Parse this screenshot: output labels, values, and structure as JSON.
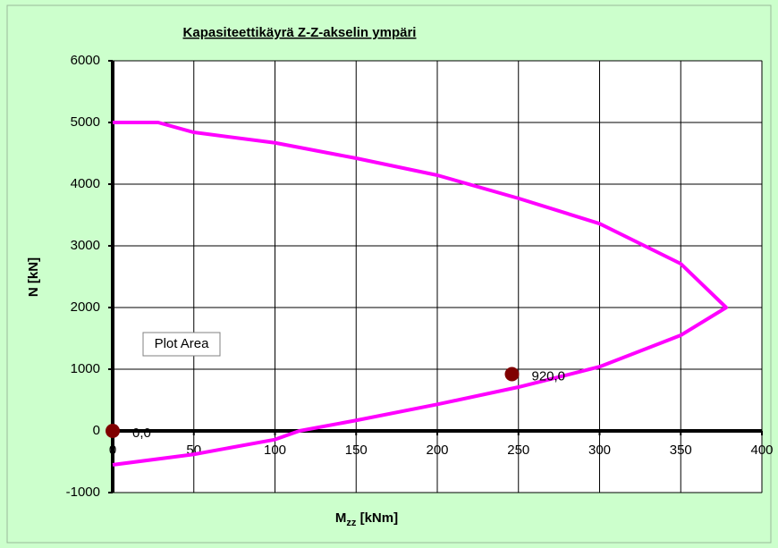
{
  "chart_data": {
    "type": "scatter",
    "title": "Kapasiteettikäyrä Z-Z-akselin ympäri",
    "x_label": {
      "main": "M",
      "sub": "zz",
      "rest": " [kNm]"
    },
    "y_label": "N [kN]",
    "tooltip": "Plot Area",
    "xlim": [
      0,
      400
    ],
    "ylim": [
      -1000,
      6000
    ],
    "xticks": [
      0,
      50,
      100,
      150,
      200,
      250,
      300,
      350,
      400
    ],
    "yticks": [
      -1000,
      0,
      1000,
      2000,
      3000,
      4000,
      5000,
      6000
    ],
    "grid": true,
    "series": [
      {
        "color": "#ff00ff",
        "line": true,
        "x": [
          0,
          50,
          100,
          115,
          150,
          200,
          250,
          300,
          350,
          378,
          350,
          300,
          250,
          200,
          150,
          100,
          50,
          28,
          0
        ],
        "values": [
          -550,
          -380,
          -140,
          0,
          170,
          430,
          710,
          1040,
          1550,
          2000,
          2710,
          3360,
          3770,
          4145,
          4420,
          4670,
          4840,
          5000,
          5000
        ]
      },
      {
        "color": "#800000",
        "line": false,
        "x": [
          0,
          246
        ],
        "values": [
          0,
          920
        ],
        "value_labels": [
          "0,0",
          "920,0"
        ]
      }
    ]
  }
}
